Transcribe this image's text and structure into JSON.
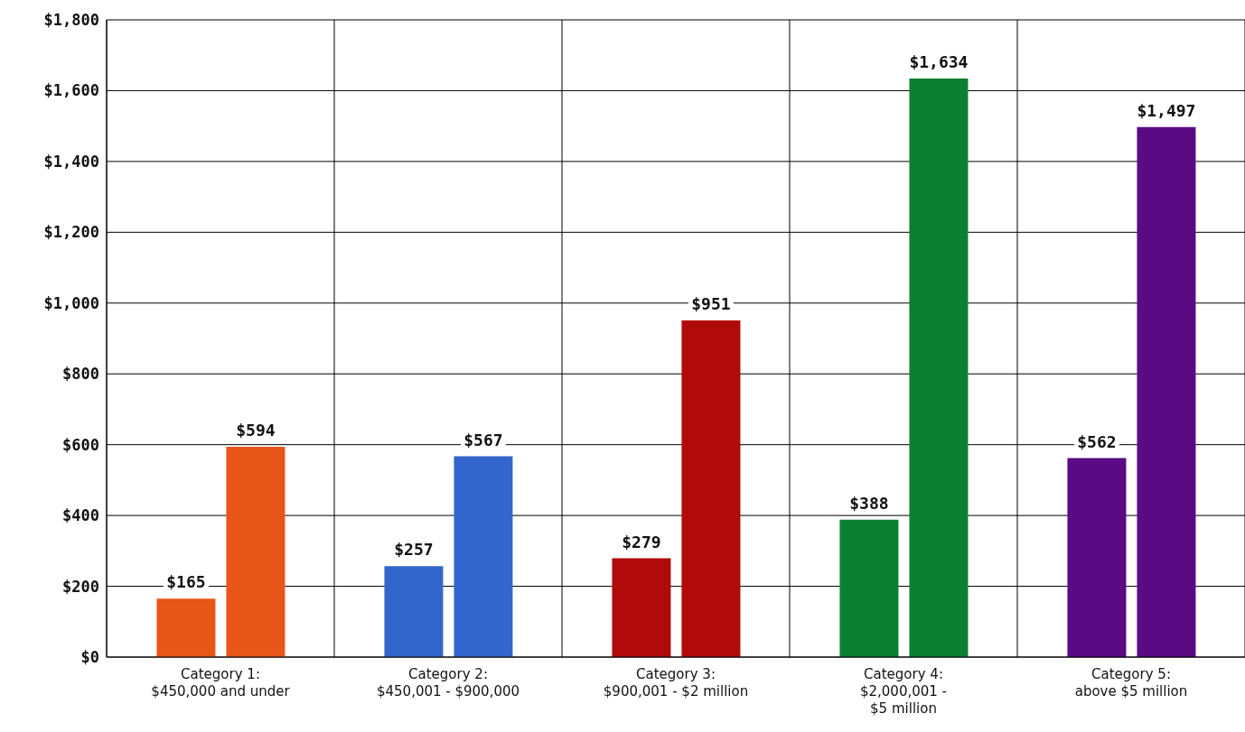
{
  "chart_data": {
    "type": "bar",
    "categories": [
      "Category 1: $450,000 and under",
      "Category 2: $450,001 - $900,000",
      "Category 3: $900,001 - $2 million",
      "Category 4: $2,000,001 - $5 million",
      "Category 5: above $5 million"
    ],
    "series": [
      {
        "colors": [
          "#e8561a",
          "#3366cc",
          "#b00a0a",
          "#0a7f32",
          "#5a0a82"
        ],
        "values": [
          165,
          257,
          279,
          388,
          562
        ],
        "value_labels": [
          "$165",
          "$257",
          "$279",
          "$388",
          "$562"
        ]
      },
      {
        "colors": [
          "#e8561a",
          "#3366cc",
          "#b00a0a",
          "#0a7f32",
          "#5a0a82"
        ],
        "values": [
          594,
          567,
          951,
          1634,
          1497
        ],
        "value_labels": [
          "$594",
          "$567",
          "$951",
          "$1,634",
          "$1,497"
        ]
      }
    ],
    "ylim": [
      0,
      1800
    ],
    "yticks": [
      {
        "value": 0,
        "label": "$0"
      },
      {
        "value": 200,
        "label": "$200"
      },
      {
        "value": 400,
        "label": "$400"
      },
      {
        "value": 600,
        "label": "$600"
      },
      {
        "value": 800,
        "label": "$800"
      },
      {
        "value": 1000,
        "label": "$1,000"
      },
      {
        "value": 1200,
        "label": "$1,200"
      },
      {
        "value": 1400,
        "label": "$1,400"
      },
      {
        "value": 1600,
        "label": "$1,600"
      },
      {
        "value": 1800,
        "label": "$1,800"
      }
    ],
    "grid": true,
    "legend": false
  }
}
